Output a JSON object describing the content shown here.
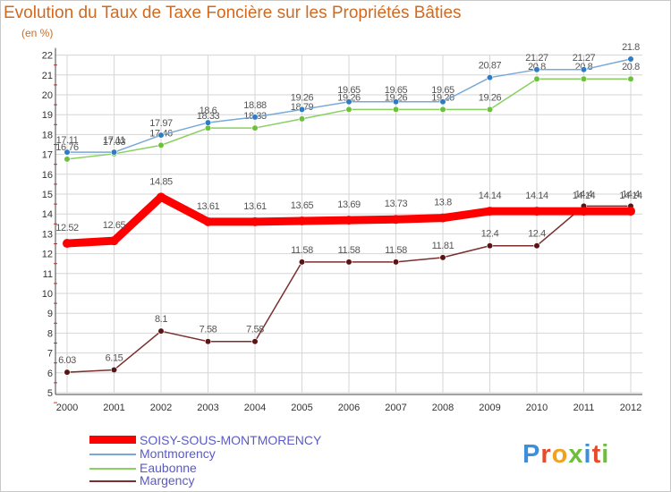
{
  "title": "Evolution du Taux de Taxe Foncière sur les Propriétés Bâties",
  "unit_label": "(en %)",
  "logo_text": "Proxiti",
  "logo_colors": [
    "#3c8fd8",
    "#e84a2a",
    "#f0a21e",
    "#6cbf3a",
    "#3c8fd8",
    "#e84a2a",
    "#6cbf3a"
  ],
  "chart_data": {
    "type": "line",
    "title": "Evolution du Taux de Taxe Foncière sur les Propriétés Bâties",
    "ylabel": "(en %)",
    "xlabel": "",
    "grid": true,
    "ylim": [
      5,
      22
    ],
    "yticks": [
      "5",
      "6",
      "7",
      "8",
      "9",
      "10",
      "11",
      "12",
      "13",
      "14",
      "15",
      "16",
      "17",
      "18",
      "19",
      "20",
      "21",
      "22"
    ],
    "categories": [
      "2000",
      "2001",
      "2002",
      "2003",
      "2004",
      "2005",
      "2006",
      "2007",
      "2008",
      "2009",
      "2010",
      "2011",
      "2012"
    ],
    "legend_position": "bottom-left",
    "series": [
      {
        "name": "Margency",
        "color": "#7a2e2e",
        "marker": "#5a1414",
        "values": [
          6.03,
          6.15,
          8.1,
          7.58,
          7.58,
          11.58,
          11.58,
          11.58,
          11.81,
          12.4,
          12.4,
          14.4,
          14.4
        ],
        "labels": [
          "6.03",
          "6.15",
          "8.1",
          "7.58",
          "7.58",
          "11.58",
          "11.58",
          "11.58",
          "11.81",
          "12.4",
          "12.4",
          "14.4",
          "14.4"
        ]
      },
      {
        "name": "Eaubonne",
        "color": "#88d060",
        "marker": "#6cc03c",
        "values": [
          16.76,
          17.03,
          17.46,
          18.33,
          18.33,
          18.79,
          19.26,
          19.26,
          19.26,
          19.26,
          20.8,
          20.8,
          20.8
        ],
        "labels": [
          "16.76",
          "17.03",
          "17.46",
          "18.33",
          "18.33",
          "18.79",
          "19.26",
          "19.26",
          "19.26",
          "19.26",
          "20.8",
          "20.8",
          "20.8"
        ]
      },
      {
        "name": "Montmorency",
        "color": "#78a8d8",
        "marker": "#2f7cc4",
        "values": [
          17.11,
          17.11,
          17.97,
          18.6,
          18.88,
          19.26,
          19.65,
          19.65,
          19.65,
          20.87,
          21.27,
          21.27,
          21.8
        ],
        "labels": [
          "17.11",
          "17.11",
          "17.97",
          "18.6",
          "18.88",
          "19.26",
          "19.65",
          "19.65",
          "19.65",
          "20.87",
          "21.27",
          "21.27",
          "21.8"
        ]
      },
      {
        "name": "SOISY-SOUS-MONTMORENCY",
        "color": "#ff0000",
        "marker": "#ff0000",
        "values": [
          12.52,
          12.65,
          14.85,
          13.61,
          13.61,
          13.65,
          13.69,
          13.73,
          13.8,
          14.14,
          14.14,
          14.14,
          14.14
        ],
        "labels": [
          "12.52",
          "12.65",
          "14.85",
          "13.61",
          "13.61",
          "13.65",
          "13.69",
          "13.73",
          "13.8",
          "14.14",
          "14.14",
          "14.14",
          "14.14"
        ]
      }
    ],
    "legend": [
      "SOISY-SOUS-MONTMORENCY",
      "Montmorency",
      "Eaubonne",
      "Margency"
    ]
  }
}
